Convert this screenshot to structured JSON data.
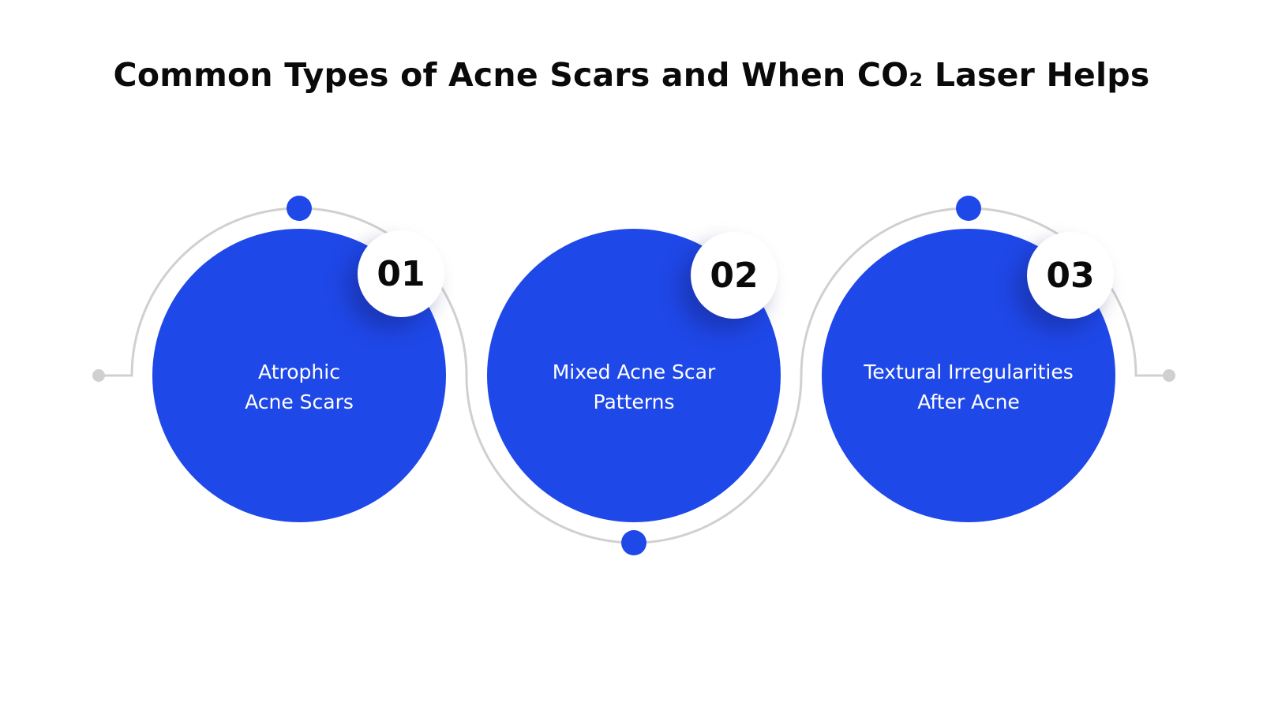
{
  "title": "Common Types of Acne Scars and When CO₂ Laser Helps",
  "colors": {
    "accent": "#1f48e8",
    "track": "#d0d0d0",
    "text_on_accent": "#ffffff",
    "badge_bg": "#ffffff",
    "heading": "#0a0a0a"
  },
  "steps": [
    {
      "number": "01",
      "line1": "Atrophic",
      "line2": "Acne Scars"
    },
    {
      "number": "02",
      "line1": "Mixed Acne Scar",
      "line2": "Patterns"
    },
    {
      "number": "03",
      "line1": "Textural Irregularities",
      "line2": "After Acne"
    }
  ]
}
